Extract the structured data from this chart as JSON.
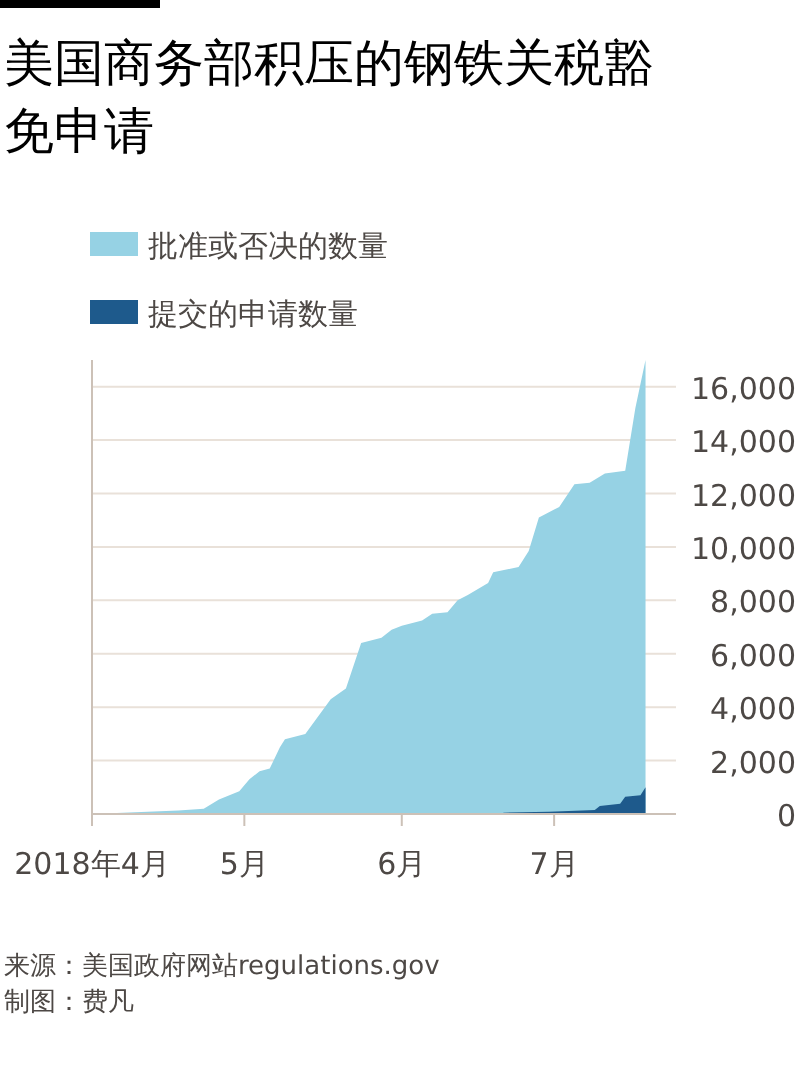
{
  "chart_data": {
    "type": "area",
    "title": "美国商务部积压的钢铁关税豁免申请",
    "xlim": [
      "2018-04-01",
      "2018-07-25"
    ],
    "xticks": [
      {
        "value": "2018-04-01",
        "label": "2018年4月"
      },
      {
        "value": "2018-05-01",
        "label": "5月"
      },
      {
        "value": "2018-06-01",
        "label": "6月"
      },
      {
        "value": "2018-07-01",
        "label": "7月"
      }
    ],
    "ylim": [
      0,
      17000
    ],
    "yticks": [
      0,
      {
        "value": 2000,
        "label": "2,000"
      },
      {
        "value": 4000,
        "label": "4,000"
      },
      {
        "value": 6000,
        "label": "6,000"
      },
      {
        "value": 8000,
        "label": "8,000"
      },
      {
        "value": 10000,
        "label": "10,000"
      },
      {
        "value": 12000,
        "label": "12,000"
      },
      {
        "value": 14000,
        "label": "14,000"
      },
      {
        "value": 16000,
        "label": "16,000"
      }
    ],
    "grid": "y",
    "legend": "top left",
    "series": [
      {
        "name": "批准或否决的数量",
        "color": "#96d2e4",
        "x": [
          "2018-04-01",
          "2018-04-18",
          "2018-04-23",
          "2018-04-26",
          "2018-04-30",
          "2018-05-02",
          "2018-05-04",
          "2018-05-06",
          "2018-05-08",
          "2018-05-09",
          "2018-05-13",
          "2018-05-18",
          "2018-05-21",
          "2018-05-24",
          "2018-05-28",
          "2018-05-30",
          "2018-06-01",
          "2018-06-05",
          "2018-06-07",
          "2018-06-10",
          "2018-06-12",
          "2018-06-14",
          "2018-06-18",
          "2018-06-19",
          "2018-06-24",
          "2018-06-26",
          "2018-06-28",
          "2018-07-02",
          "2018-07-05",
          "2018-07-08",
          "2018-07-11",
          "2018-07-15",
          "2018-07-17",
          "2018-07-19"
        ],
        "values": [
          0,
          130,
          200,
          540,
          850,
          1300,
          1600,
          1700,
          2500,
          2800,
          3000,
          4300,
          4700,
          6400,
          6600,
          6900,
          7050,
          7250,
          7500,
          7550,
          8000,
          8200,
          8650,
          9050,
          9250,
          9850,
          11100,
          11500,
          12350,
          12400,
          12750,
          12850,
          15200,
          17000
        ]
      },
      {
        "name": "提交的申请数量",
        "color": "#1e5a8c",
        "x": [
          "2018-06-21",
          "2018-06-30",
          "2018-07-09",
          "2018-07-10",
          "2018-07-14",
          "2018-07-15",
          "2018-07-18",
          "2018-07-19"
        ],
        "values": [
          50,
          80,
          150,
          300,
          380,
          650,
          700,
          1000
        ]
      }
    ],
    "annotations": [
      "来源：美国政府网站regulations.gov",
      "制图：费凡"
    ]
  }
}
